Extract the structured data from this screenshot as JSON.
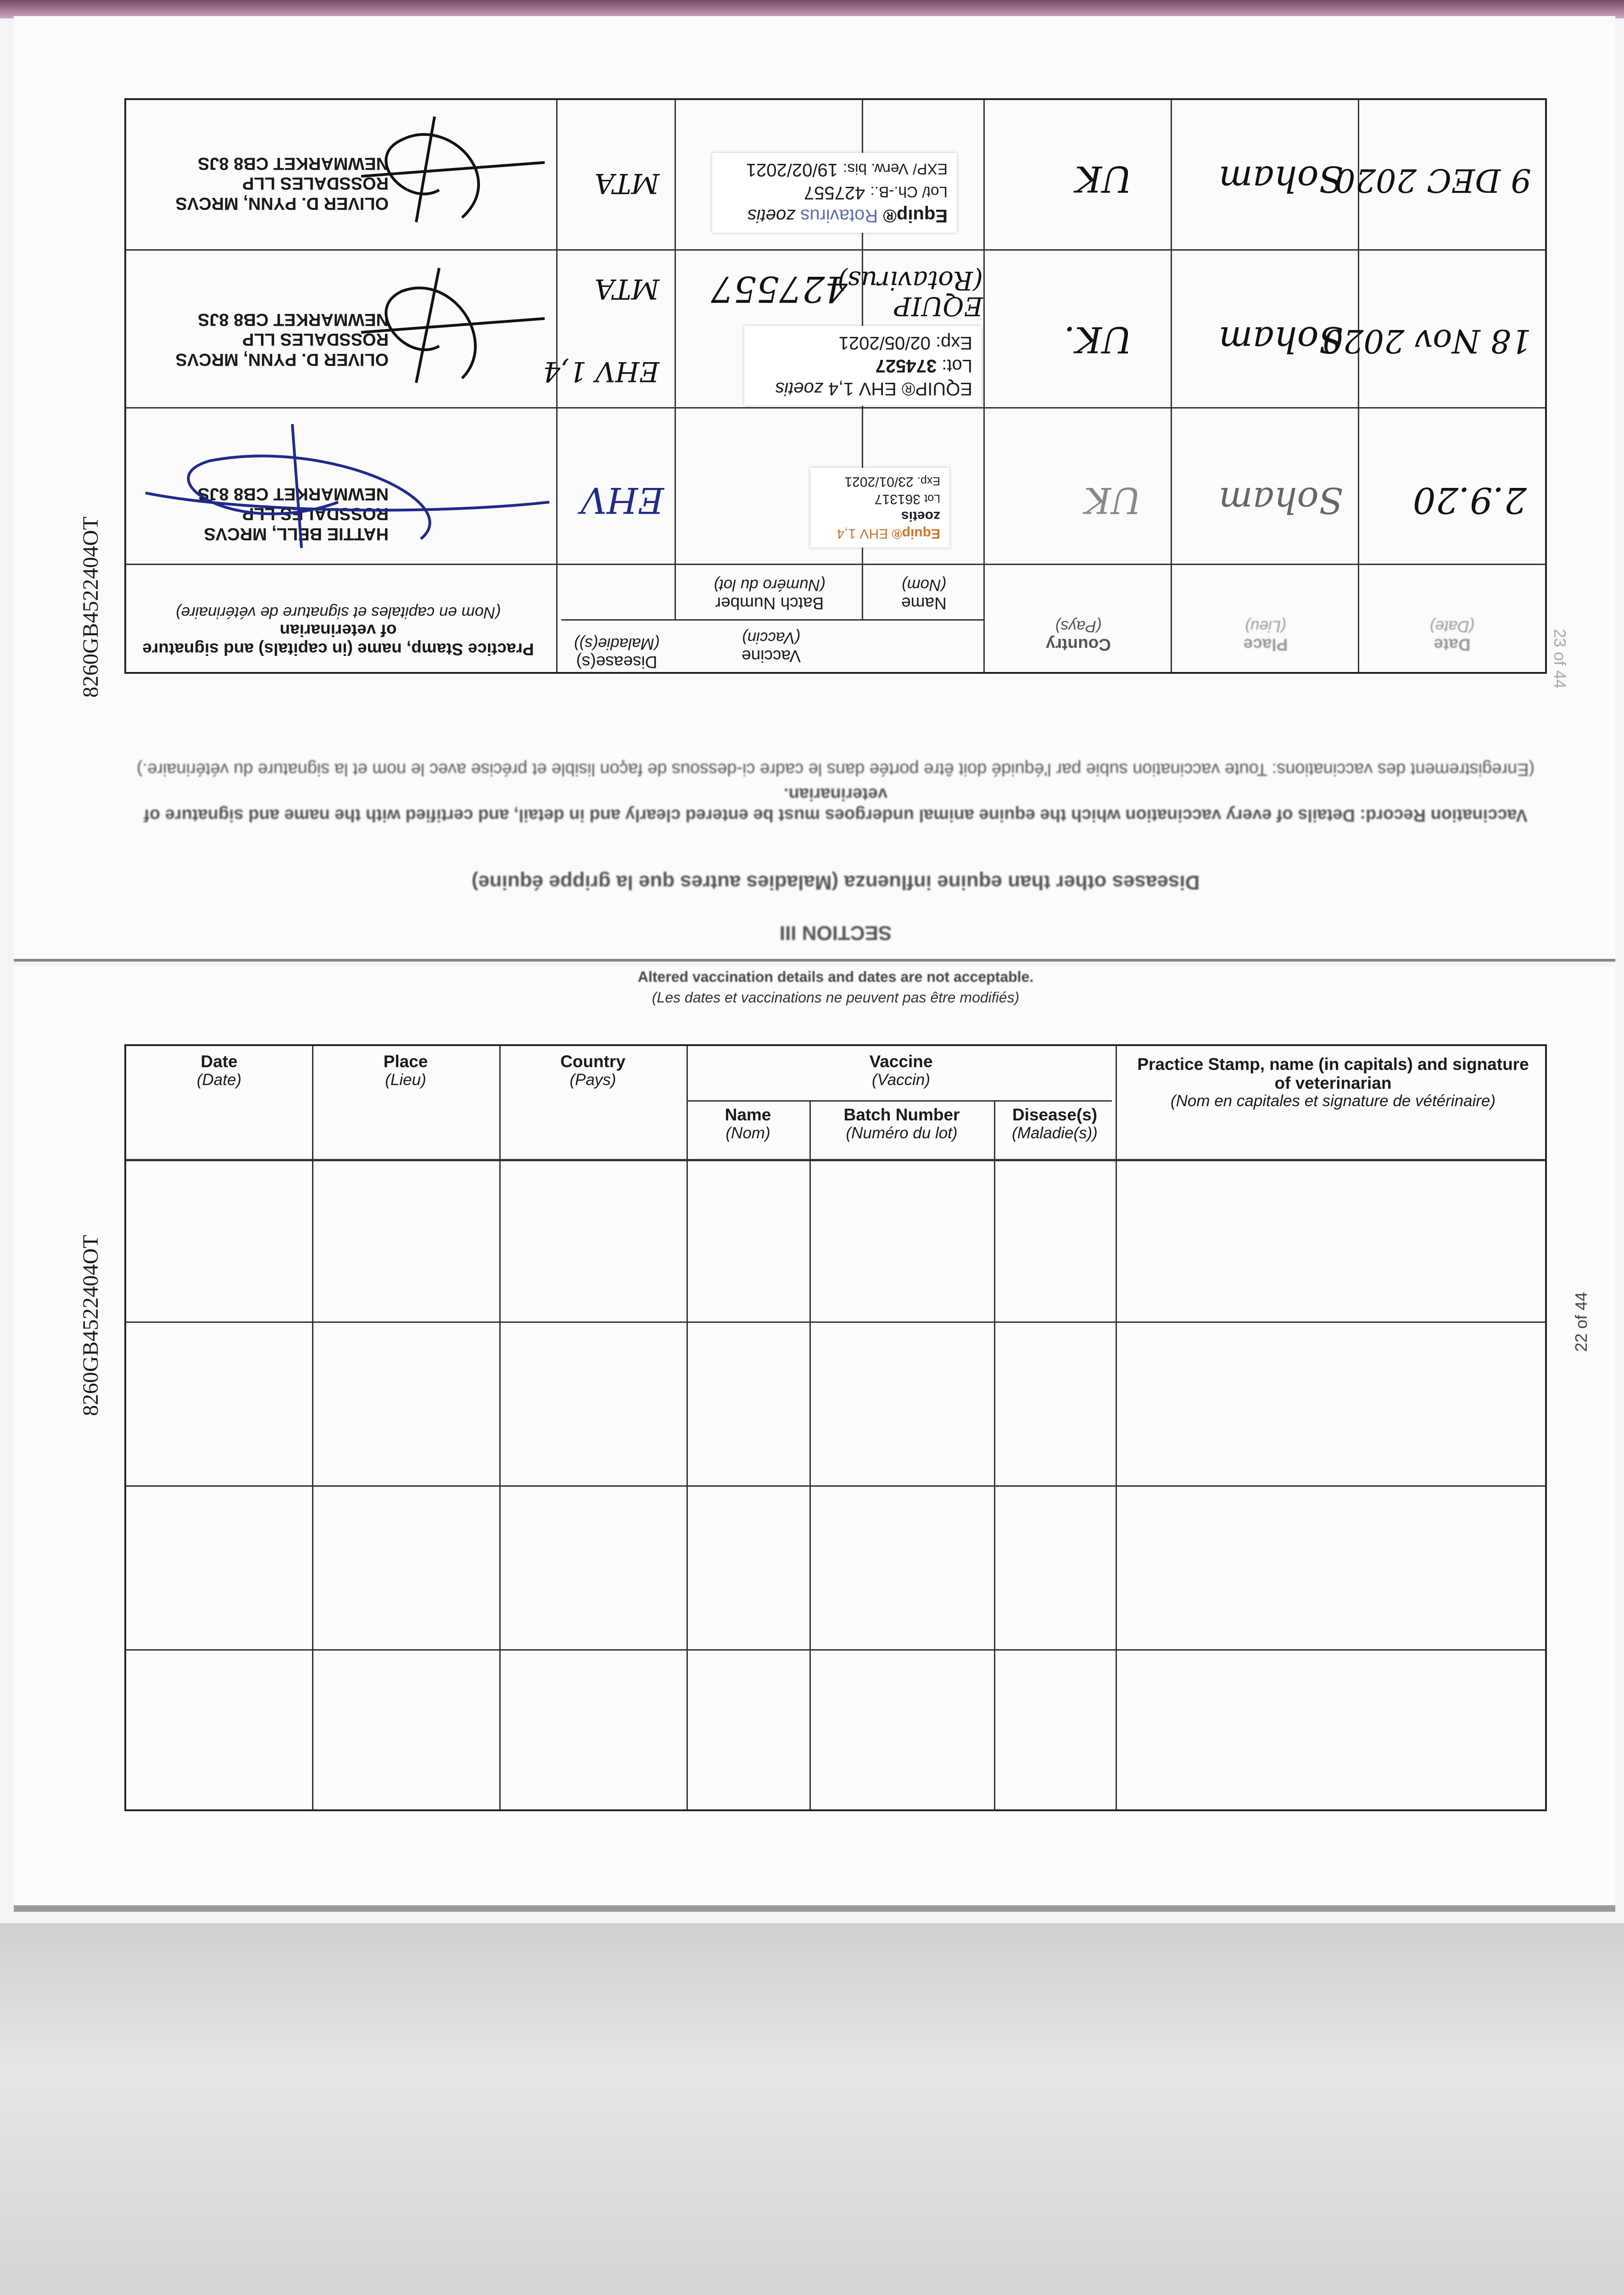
{
  "side_id": "8260GB4522404OT",
  "upper_page": {
    "page_number": "23 of 44",
    "section": "SECTION III",
    "section_title": "Diseases other than equine influenza (Maladies autres que la grippe équine)",
    "intro_en": "Vaccination Record: Details of every vaccination which the equine animal undergoes must be entered clearly and in detail, and certified with the name and signature of veterinarian.",
    "intro_fr": "(Enregistrement des vaccinations: Toute vaccination subie par l'équidé doit être portée dans le cadre ci-dessous de façon lisible et précise avec le nom et la signature du vétérinaire.)",
    "headers": {
      "date": "Date",
      "date_fr": "(Date)",
      "place": "Place",
      "place_fr": "(Lieu)",
      "country": "Country",
      "country_fr": "(Pays)",
      "vaccine": "Vaccine",
      "vaccine_fr": "(Vaccin)",
      "name": "Name",
      "name_fr": "(Nom)",
      "batch": "Batch Number",
      "batch_fr": "(Numéro du lot)",
      "disease": "Disease(s)",
      "disease_fr": "(Maladie(s))",
      "stamp": "Practice Stamp, name (in capitals) and signature of veterinarian",
      "stamp_fr": "(Nom en capitales et signature de vétérinaire)"
    },
    "rows": [
      {
        "date": "2.9.20",
        "place": "Soham",
        "country": "UK",
        "disease": "EHV",
        "sticker": {
          "brand": "Equip®",
          "product": "EHV 1,4",
          "maker": "zoetis",
          "lot_label": "Lot",
          "lot": "361317",
          "exp_label": "Exp.",
          "exp": "23/01/2021"
        },
        "stamp": [
          "HATTIE BELL, MRCVS",
          "ROSSDALES LLP",
          "NEWMARKET CB8 8JS"
        ]
      },
      {
        "date": "18 Nov 2020",
        "place": "Soham",
        "country": "UK.",
        "disease": "EHV 1,4",
        "name_hw": "EQUIP (Rotavirus)",
        "batch_hw": "427557",
        "disease_hw": "MTA",
        "sticker": {
          "brand": "EQUIP®",
          "product": "EHV 1,4",
          "maker": "zoetis",
          "lot_label": "Lot:",
          "lot": "374527",
          "exp_label": "Exp:",
          "exp": "02/05/2021"
        },
        "stamp": [
          "OLIVER D. PYNN, MRCVS",
          "ROSSDALES LLP",
          "NEWMARKET CB8 8JS"
        ]
      },
      {
        "date": "9 DEC 2020",
        "place": "Soham",
        "country": "UK",
        "disease": "MTA",
        "sticker": {
          "brand": "Equip®",
          "product": "Rotavirus",
          "maker": "zoetis",
          "lot_label": "Lot/ Ch.-B.:",
          "lot": "427557",
          "exp_label": "EXP/ Verw. bis:",
          "exp": "19/02/2021"
        },
        "stamp": [
          "OLIVER D. PYNN, MRCVS",
          "ROSSDALES LLP",
          "NEWMARKET CB8 8JS"
        ]
      }
    ]
  },
  "lower_page": {
    "page_number": "22 of 44",
    "notice": "Altered vaccination details and dates are not acceptable.",
    "notice_fr": "(Les dates et vaccinations ne peuvent pas être modifiés)",
    "headers": {
      "date": "Date",
      "date_fr": "(Date)",
      "place": "Place",
      "place_fr": "(Lieu)",
      "country": "Country",
      "country_fr": "(Pays)",
      "vaccine": "Vaccine",
      "vaccine_fr": "(Vaccin)",
      "name": "Name",
      "name_fr": "(Nom)",
      "batch": "Batch Number",
      "batch_fr": "(Numéro du lot)",
      "disease": "Disease(s)",
      "disease_fr": "(Maladie(s))",
      "stamp": "Practice Stamp, name (in capitals) and signature of veterinarian",
      "stamp_fr": "(Nom en capitales et signature de vétérinaire)"
    },
    "empty_rows": 4
  },
  "colors": {
    "sticker_blue": "#5a6fae",
    "sticker_orange": "#c8752e",
    "ink_blue": "#1f2a8a",
    "ink_black": "#111111"
  }
}
